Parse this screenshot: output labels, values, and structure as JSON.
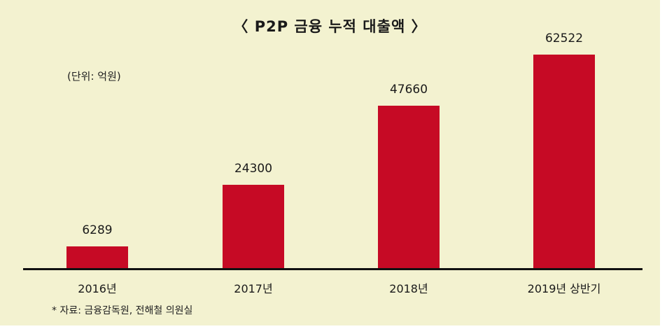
{
  "chart_data": {
    "type": "bar",
    "title": "〈 P2P 금융 누적 대출액 〉",
    "unit_label": "(단위: 억원)",
    "source": "* 자료: 금융감독원, 전해철 의원실",
    "categories": [
      "2016년",
      "2017년",
      "2018년",
      "2019년 상반기"
    ],
    "values": [
      6289,
      24300,
      47660,
      62522
    ],
    "value_labels": [
      "6289",
      "24300",
      "47660",
      "62522"
    ],
    "xlabel": "",
    "ylabel": "억원",
    "ylim": [
      0,
      70000
    ],
    "grid": false,
    "legend": "none",
    "bar_color": "#c60a25",
    "background_color": "#f3f2d0"
  }
}
